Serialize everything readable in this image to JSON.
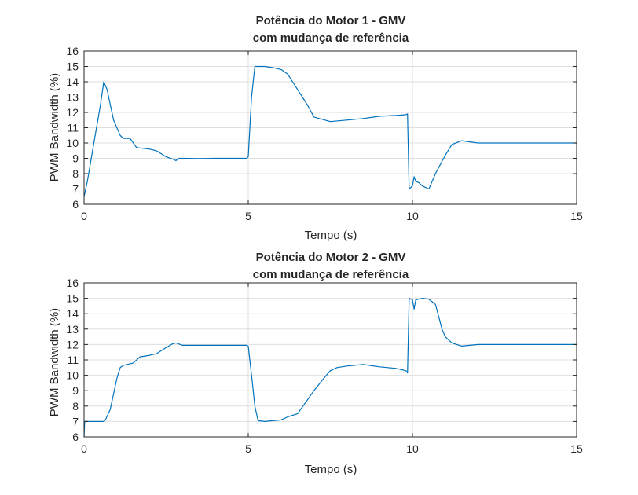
{
  "chart_data": [
    {
      "type": "line",
      "title": "Potência do Motor 1 - GMV",
      "subtitle": "com mudança de referência",
      "xlabel": "Tempo (s)",
      "ylabel": "PWM Bandwidth (%)",
      "xlim": [
        0,
        15
      ],
      "ylim": [
        6,
        16
      ],
      "xticks": [
        "0",
        "5",
        "10",
        "15"
      ],
      "yticks": [
        "6",
        "7",
        "8",
        "9",
        "10",
        "11",
        "12",
        "13",
        "14",
        "15",
        "16"
      ],
      "grid": true,
      "series_color": "#0072BD",
      "series": [
        {
          "x": [
            0,
            0.1,
            0.3,
            0.5,
            0.6,
            0.7,
            0.8,
            0.9,
            1.0,
            1.1,
            1.2,
            1.4,
            1.5,
            1.6,
            1.8,
            2.0,
            2.2,
            2.5,
            2.7,
            2.8,
            2.9,
            3.0,
            3.5,
            4.0,
            4.5,
            4.95,
            5.0,
            5.1,
            5.2,
            5.3,
            5.5,
            5.8,
            6.0,
            6.2,
            6.5,
            6.8,
            7.0,
            7.5,
            8.0,
            8.5,
            9.0,
            9.5,
            9.8,
            9.85,
            9.9,
            10.0,
            10.05,
            10.1,
            10.2,
            10.3,
            10.4,
            10.5,
            10.7,
            10.9,
            11.0,
            11.2,
            11.5,
            12.0,
            13.0,
            14.0,
            15.0
          ],
          "values": [
            6.5,
            7.5,
            10.0,
            12.5,
            14.0,
            13.5,
            12.5,
            11.5,
            11.0,
            10.5,
            10.3,
            10.3,
            10.0,
            9.7,
            9.65,
            9.6,
            9.5,
            9.1,
            8.95,
            8.85,
            9.0,
            9.0,
            8.98,
            9.0,
            9.0,
            9.0,
            9.1,
            13.0,
            15.0,
            15.0,
            15.0,
            14.9,
            14.8,
            14.5,
            13.5,
            12.5,
            11.7,
            11.4,
            11.5,
            11.6,
            11.75,
            11.8,
            11.85,
            11.9,
            7.0,
            7.2,
            7.8,
            7.5,
            7.4,
            7.2,
            7.1,
            7.0,
            8.0,
            8.8,
            9.2,
            9.9,
            10.15,
            10.0,
            10.0,
            10.0,
            10.0
          ]
        }
      ]
    },
    {
      "type": "line",
      "title": "Potência do Motor 2 - GMV",
      "subtitle": "com mudança de referência",
      "xlabel": "Tempo (s)",
      "ylabel": "PWM Bandwidth (%)",
      "xlim": [
        0,
        15
      ],
      "ylim": [
        6,
        16
      ],
      "xticks": [
        "0",
        "5",
        "10",
        "15"
      ],
      "yticks": [
        "6",
        "7",
        "8",
        "9",
        "10",
        "11",
        "12",
        "13",
        "14",
        "15",
        "16"
      ],
      "grid": true,
      "series_color": "#0072BD",
      "series": [
        {
          "x": [
            0,
            0.02,
            0.6,
            0.65,
            0.8,
            0.9,
            1.0,
            1.1,
            1.2,
            1.5,
            1.7,
            2.0,
            2.2,
            2.5,
            2.7,
            2.8,
            3.0,
            3.5,
            4.0,
            4.5,
            4.95,
            5.0,
            5.1,
            5.2,
            5.3,
            5.5,
            6.0,
            6.2,
            6.5,
            7.0,
            7.3,
            7.5,
            7.7,
            8.0,
            8.5,
            9.0,
            9.5,
            9.8,
            9.85,
            9.9,
            10.0,
            10.05,
            10.1,
            10.3,
            10.5,
            10.7,
            10.9,
            11.0,
            11.2,
            11.5,
            12.0,
            13.0,
            14.0,
            15.0
          ],
          "values": [
            6.0,
            7.0,
            7.0,
            7.1,
            7.8,
            8.8,
            9.8,
            10.5,
            10.65,
            10.8,
            11.2,
            11.3,
            11.4,
            11.8,
            12.05,
            12.1,
            11.95,
            11.95,
            11.95,
            11.95,
            11.95,
            11.9,
            10.0,
            8.0,
            7.05,
            7.0,
            7.1,
            7.3,
            7.5,
            9.0,
            9.8,
            10.3,
            10.5,
            10.6,
            10.7,
            10.55,
            10.45,
            10.3,
            10.15,
            15.0,
            14.9,
            14.3,
            14.9,
            15.0,
            14.95,
            14.6,
            13.0,
            12.5,
            12.1,
            11.9,
            12.0,
            12.0,
            12.0,
            12.0
          ]
        }
      ]
    }
  ]
}
